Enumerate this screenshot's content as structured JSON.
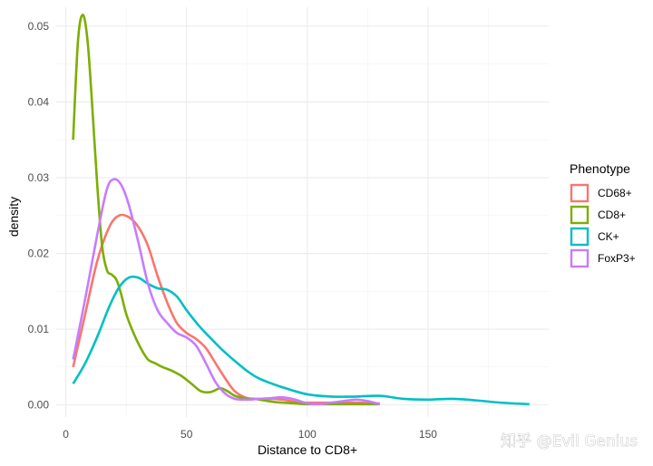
{
  "chart_data": {
    "type": "line",
    "xlabel": "Distance to CD8+",
    "ylabel": "density",
    "xlim": [
      -4,
      200
    ],
    "ylim": [
      -0.0016,
      0.0525
    ],
    "x_ticks": [
      0,
      50,
      100,
      150
    ],
    "y_ticks": [
      0.0,
      0.01,
      0.02,
      0.03,
      0.04,
      0.05
    ],
    "x_tick_labels": [
      "0",
      "50",
      "100",
      "150"
    ],
    "y_tick_labels": [
      "0.00",
      "0.01",
      "0.02",
      "0.03",
      "0.04",
      "0.05"
    ],
    "grid": true,
    "legend": {
      "title": "Phenotype",
      "position": "right"
    },
    "series": [
      {
        "name": "CD68+",
        "color": "#F8766D",
        "x": [
          3,
          8,
          13,
          18,
          22,
          26,
          30,
          34,
          38,
          42,
          46,
          50,
          54,
          58,
          62,
          66,
          70,
          75,
          80,
          85,
          90,
          95,
          100,
          110,
          120,
          130
        ],
        "y": [
          0.005,
          0.012,
          0.019,
          0.0235,
          0.025,
          0.0248,
          0.0235,
          0.021,
          0.017,
          0.0135,
          0.0108,
          0.0095,
          0.0087,
          0.0075,
          0.0055,
          0.0035,
          0.0018,
          0.0009,
          0.0008,
          0.0008,
          0.0007,
          0.0004,
          0.0003,
          0.0003,
          0.0003,
          0.0002
        ]
      },
      {
        "name": "CD8+",
        "color": "#7CAE00",
        "x": [
          3,
          5,
          7,
          9,
          11,
          13,
          15,
          17,
          19,
          21,
          23,
          25,
          28,
          31,
          34,
          37,
          40,
          44,
          48,
          52,
          56,
          60,
          64,
          67,
          70,
          74,
          78,
          82,
          86,
          90,
          95,
          100,
          110,
          120,
          130
        ],
        "y": [
          0.035,
          0.048,
          0.0515,
          0.048,
          0.039,
          0.029,
          0.021,
          0.0178,
          0.0172,
          0.0165,
          0.0145,
          0.012,
          0.0095,
          0.0075,
          0.006,
          0.0055,
          0.005,
          0.0045,
          0.0038,
          0.0028,
          0.0018,
          0.0017,
          0.0022,
          0.0018,
          0.0012,
          0.0009,
          0.0008,
          0.0006,
          0.0004,
          0.0003,
          0.0002,
          0.0001,
          0.0001,
          0.0001,
          0.0001
        ]
      },
      {
        "name": "CK+",
        "color": "#00BFC4",
        "x": [
          3,
          8,
          13,
          18,
          22,
          26,
          30,
          34,
          38,
          42,
          46,
          50,
          55,
          60,
          65,
          70,
          75,
          80,
          90,
          100,
          110,
          120,
          130,
          140,
          150,
          160,
          170,
          180,
          192
        ],
        "y": [
          0.0028,
          0.0055,
          0.009,
          0.013,
          0.0155,
          0.0168,
          0.0168,
          0.016,
          0.0154,
          0.0152,
          0.0143,
          0.0125,
          0.0105,
          0.0088,
          0.0072,
          0.0058,
          0.0045,
          0.0035,
          0.0023,
          0.0014,
          0.0011,
          0.0011,
          0.0012,
          0.0008,
          0.0007,
          0.0008,
          0.0006,
          0.0003,
          0.0001
        ]
      },
      {
        "name": "FoxP3+",
        "color": "#C77CFF",
        "x": [
          3,
          8,
          13,
          17,
          20,
          23,
          26,
          30,
          34,
          38,
          42,
          46,
          50,
          54,
          58,
          62,
          66,
          70,
          75,
          80,
          85,
          90,
          95,
          100,
          105,
          110,
          115,
          120,
          125,
          130
        ],
        "y": [
          0.006,
          0.014,
          0.0225,
          0.0285,
          0.0298,
          0.029,
          0.0265,
          0.0215,
          0.016,
          0.0125,
          0.0108,
          0.0095,
          0.0089,
          0.0078,
          0.0055,
          0.003,
          0.0015,
          0.0008,
          0.0007,
          0.0008,
          0.0009,
          0.001,
          0.0007,
          0.0002,
          0.0001,
          0.0003,
          0.0005,
          0.0007,
          0.0005,
          0.0001
        ]
      }
    ]
  },
  "watermark": "知乎 @Evil Genius"
}
